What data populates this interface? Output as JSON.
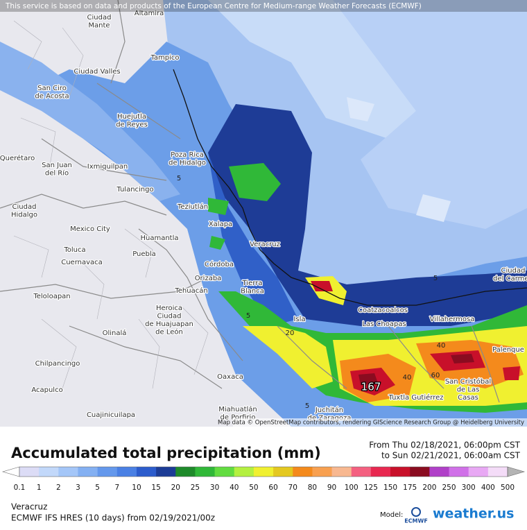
{
  "header": {
    "notice": "This service is based on data and products of the European Centre for Medium-range Weather Forecasts (ECMWF)"
  },
  "map": {
    "cities": [
      [
        "Ciudad",
        "Mante"
      ],
      [
        "Altamira"
      ],
      [
        "Tampico"
      ],
      [
        "Ciudad Valles"
      ],
      [
        "San Ciro",
        "de Acosta"
      ],
      [
        "Huejutla",
        "de Reyes"
      ],
      [
        "Poza Rica",
        "de Hidalgo"
      ],
      [
        "San Juan",
        "del Río"
      ],
      [
        "Ixmiquilpan"
      ],
      [
        "Querétaro"
      ],
      [
        "Tulancingo"
      ],
      [
        "Teziutlán"
      ],
      [
        "Ciudad",
        "Hidalgo"
      ],
      [
        "Xalapa"
      ],
      [
        "Mexico City"
      ],
      [
        "Huamantla"
      ],
      [
        "Toluca"
      ],
      [
        "Puebla"
      ],
      [
        "Cuernavaca"
      ],
      [
        "Veracruz"
      ],
      [
        "Córdoba"
      ],
      [
        "Orizaba"
      ],
      [
        "Tierra",
        "Blanca"
      ],
      [
        "Tehuacán"
      ],
      [
        "Teloloapan"
      ],
      [
        "Heroica",
        "Ciudad",
        "de Huajuapan",
        "de León"
      ],
      [
        "Coatzacoalcos"
      ],
      [
        "Las Choapas"
      ],
      [
        "Villahermosa"
      ],
      [
        "Isla"
      ],
      [
        "Ciudad",
        "del Carmen"
      ],
      [
        "Palenque"
      ],
      [
        "Olinalá"
      ],
      [
        "Chilpancingo"
      ],
      [
        "Oaxaca"
      ],
      [
        "San Cristóbal",
        "de Las",
        "Casas"
      ],
      [
        "Tuxtla Gutiérrez"
      ],
      [
        "Acapulco"
      ],
      [
        "Juchitán",
        "de Zaragoza"
      ],
      [
        "Miahuatlán",
        "de Porfirio"
      ],
      [
        "Cuajinicuilapa"
      ]
    ],
    "contour_labels": [
      5,
      5,
      5,
      20,
      40,
      40,
      60,
      5
    ],
    "maximum": 167,
    "attribution": "Map data © OpenStreetMap contributors, rendering GIScience Research Group @ Heidelberg University"
  },
  "legend": {
    "title": "Accumulated total precipitation (mm)",
    "period_from": "From Thu 02/18/2021, 06:00pm CST",
    "period_to": "to Sun 02/21/2021, 06:00am CST",
    "levels": [
      0.1,
      1,
      2,
      3,
      5,
      7,
      10,
      15,
      20,
      25,
      30,
      40,
      50,
      60,
      70,
      80,
      90,
      100,
      125,
      150,
      175,
      200,
      250,
      300,
      400,
      500
    ],
    "colors": [
      "#dcdcf6",
      "#c2d8fa",
      "#a4c6f8",
      "#84b0f2",
      "#6498ec",
      "#4a80e4",
      "#2c5ccc",
      "#1c3c96",
      "#1e8a2a",
      "#30b838",
      "#62dc40",
      "#b4f040",
      "#f0f030",
      "#e4c820",
      "#f48a1c",
      "#f8a050",
      "#f8b890",
      "#f46080",
      "#e82850",
      "#c8102a",
      "#8a0c20",
      "#b040c8",
      "#d070e8",
      "#e8a8f4",
      "#f4dcf8"
    ],
    "under_color": "#ffffff",
    "over_color": "#b4b4b4"
  },
  "footer": {
    "location": "Veracruz",
    "model_run": "ECMWF IFS HRES (10 days) from 02/19/2021/00z",
    "model_label": "Model:",
    "model_logo": "ECMWF",
    "brand": "weather.us"
  }
}
